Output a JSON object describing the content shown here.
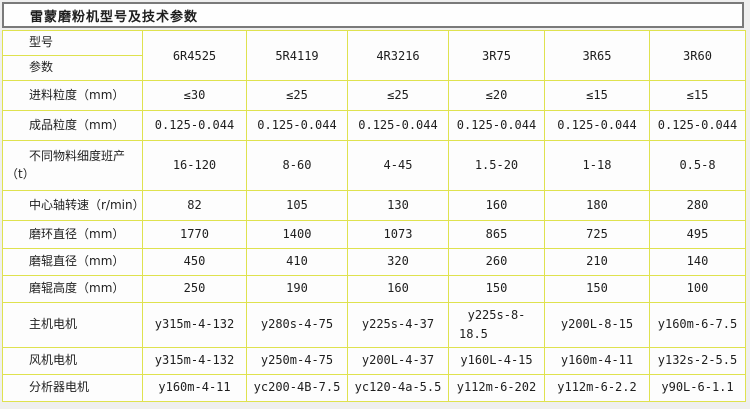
{
  "title": "雷蒙磨粉机型号及技术参数",
  "colors": {
    "border_yellow": "#dfe24f",
    "title_border": "#7a7a7a",
    "page_bg": "#efefef",
    "cell_bg": "#fdfdfd",
    "text": "#1e1e1e"
  },
  "table": {
    "corner_top": "型号",
    "corner_bottom": "参数",
    "models": [
      "6R4525",
      "5R4119",
      "4R3216",
      "3R75",
      "3R65",
      "3R60"
    ],
    "rows": [
      {
        "label": "进料粒度（mm）",
        "values": [
          "≤30",
          "≤25",
          "≤25",
          "≤20",
          "≤15",
          "≤15"
        ]
      },
      {
        "label": "成品粒度（mm）",
        "values": [
          "0.125-0.044",
          "0.125-0.044",
          "0.125-0.044",
          "0.125-0.044",
          "0.125-0.044",
          "0.125-0.044"
        ]
      },
      {
        "label": "不同物料细度班产\n（t）",
        "values": [
          "16-120",
          "8-60",
          "4-45",
          "1.5-20",
          "1-18",
          "0.5-8"
        ]
      },
      {
        "label": "中心轴转速（r/min）",
        "values": [
          "82",
          "105",
          "130",
          "160",
          "180",
          "280"
        ]
      },
      {
        "label": "磨环直径（mm）",
        "values": [
          "1770",
          "1400",
          "1073",
          "865",
          "725",
          "495"
        ]
      },
      {
        "label": "磨辊直径（mm）",
        "values": [
          "450",
          "410",
          "320",
          "260",
          "210",
          "140"
        ]
      },
      {
        "label": "磨辊高度（mm）",
        "values": [
          "250",
          "190",
          "160",
          "150",
          "150",
          "100"
        ]
      },
      {
        "label": "主机电机",
        "values": [
          "y315m-4-132",
          "y280s-4-75",
          "y225s-4-37",
          "y225s-8-\n18.5",
          "y200L-8-15",
          "y160m-6-7.5"
        ]
      },
      {
        "label": "风机电机",
        "values": [
          "y315m-4-132",
          "y250m-4-75",
          "y200L-4-37",
          "y160L-4-15",
          "y160m-4-11",
          "y132s-2-5.5"
        ]
      },
      {
        "label": "分析器电机",
        "values": [
          "y160m-4-11",
          "yc200-4B-7.5",
          "yc120-4a-5.5",
          "y112m-6-202",
          "y112m-6-2.2",
          "y90L-6-1.1"
        ]
      }
    ]
  }
}
